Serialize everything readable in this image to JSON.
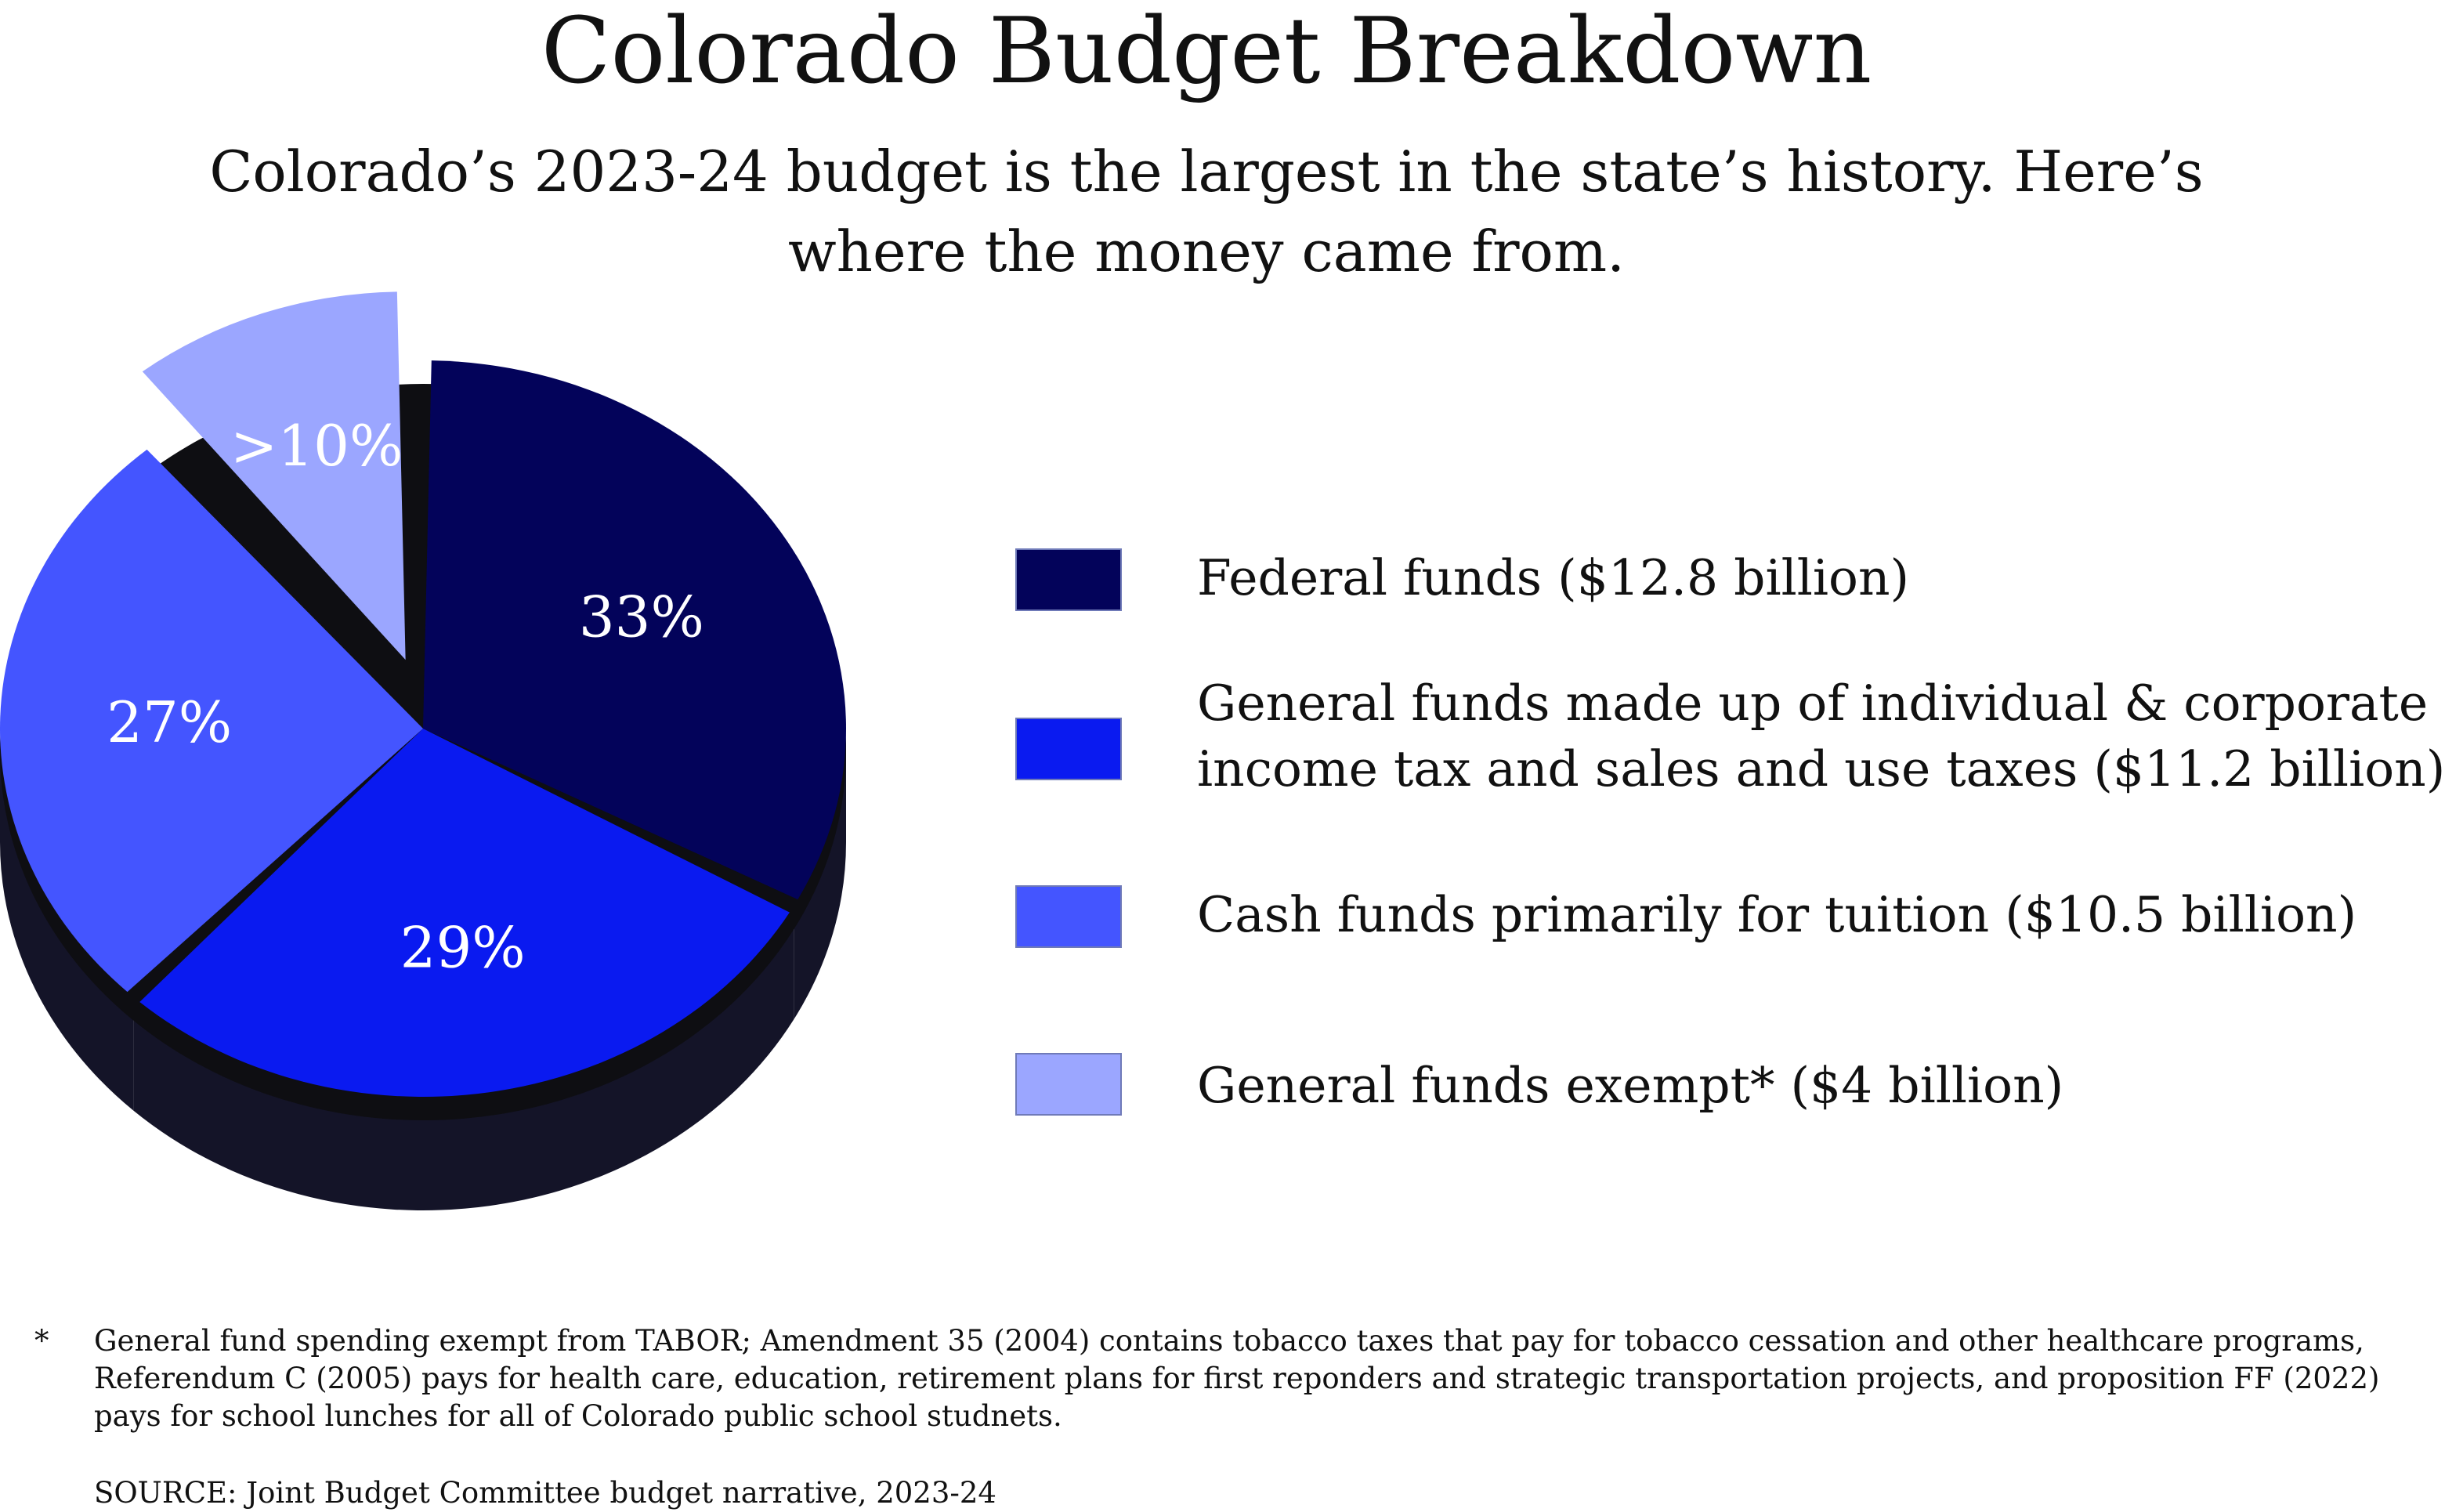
{
  "title": "Colorado Budget Breakdown",
  "subtitle_line1": "Colorado’s 2023-24 budget is the largest in the state’s history. Here’s",
  "subtitle_line2": "where the money came from.",
  "chart_data": {
    "type": "pie",
    "title": "Colorado Budget Breakdown",
    "slices": [
      {
        "name": "Federal funds ($12.8 billion)",
        "label": "33%",
        "value": 33,
        "color": "#03035a"
      },
      {
        "name": "General funds made up of individual & corporate income tax and sales and use taxes ($11.2 billion)",
        "label": "29%",
        "value": 29,
        "color": "#0a1af0"
      },
      {
        "name": "Cash funds primarily for tuition  ($10.5 billion)",
        "label": "27%",
        "value": 27,
        "color": "#4455ff"
      },
      {
        "name": "General funds exempt*  ($4 billion)",
        "label": ">10%",
        "value": 11,
        "color": "#9ba6ff",
        "exploded": true
      }
    ],
    "style": "3d-exploded",
    "legend_position": "right"
  },
  "legend": [
    {
      "lines": [
        "Federal funds ($12.8 billion)"
      ],
      "color": "#03035a"
    },
    {
      "lines": [
        "General funds made up of individual & corporate",
        "income tax and sales and use taxes ($11.2 billion)"
      ],
      "color": "#0a1af0"
    },
    {
      "lines": [
        "Cash funds primarily for tuition  ($10.5 billion)"
      ],
      "color": "#4455ff"
    },
    {
      "lines": [
        "General funds exempt*  ($4 billion)"
      ],
      "color": "#9ba6ff"
    }
  ],
  "footnote": {
    "mark": "*",
    "text": "General fund spending exempt from TABOR; Amendment 35 (2004) contains tobacco taxes that pay for tobacco cessation and other healthcare programs, Referendum C (2005) pays for health care, education, retirement plans for first reponders and strategic transportation projects, and proposition FF (2022) pays for school lunches for all of Colorado public school studnets."
  },
  "source": "SOURCE: Joint Budget Committee budget narrative, 2023-24"
}
